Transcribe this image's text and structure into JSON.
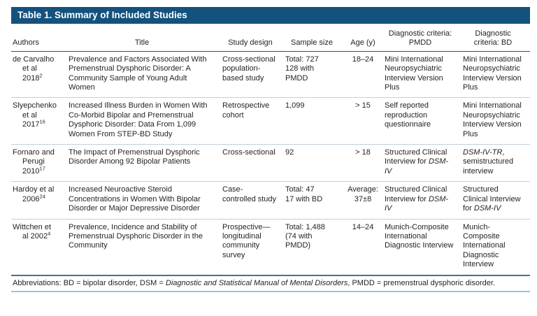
{
  "title_bar": {
    "text": "Table 1. Summary of Included Studies"
  },
  "colors": {
    "title_bar_bg": "#14527E",
    "title_bar_text": "#FFFFFF",
    "header_rule": "#4A4A4C",
    "row_rule": "#C2CFDA",
    "strong_rule": "#35779F",
    "light_rule": "#9FC2D6",
    "text": "#231F20"
  },
  "table": {
    "columns": [
      {
        "key": "authors",
        "label": "Authors"
      },
      {
        "key": "title",
        "label": "Title"
      },
      {
        "key": "design",
        "label": "Study design"
      },
      {
        "key": "sample",
        "label": "Sample size"
      },
      {
        "key": "age",
        "label": "Age (y)"
      },
      {
        "key": "pmdd",
        "label": "Diagnostic criteria: PMDD"
      },
      {
        "key": "bd",
        "label": "Diagnostic criteria: BD"
      }
    ],
    "rows": [
      {
        "authors": [
          {
            "text": "de Carvalho"
          },
          {
            "br": true
          },
          {
            "text": "et al"
          },
          {
            "br": true
          },
          {
            "text": "2018"
          },
          {
            "text": "2",
            "sup": true
          }
        ],
        "title": [
          {
            "text": "Prevalence and Factors Associated With Premenstrual Dysphoric Disorder: A Community Sample of Young Adult Women"
          }
        ],
        "design": [
          {
            "text": "Cross-sectional population-based study"
          }
        ],
        "sample": [
          {
            "text": "Total: 727"
          },
          {
            "br": true
          },
          {
            "text": "128 with"
          },
          {
            "br": true
          },
          {
            "text": "PMDD"
          }
        ],
        "age": [
          {
            "text": "18–24"
          }
        ],
        "pmdd": [
          {
            "text": "Mini International Neuropsychiatric Interview Version Plus"
          }
        ],
        "bd": [
          {
            "text": "Mini International Neuropsychiatric Interview Version Plus"
          }
        ]
      },
      {
        "authors": [
          {
            "text": "Slyepchenko"
          },
          {
            "br": true
          },
          {
            "text": "et al"
          },
          {
            "br": true
          },
          {
            "text": "2017"
          },
          {
            "text": "16",
            "sup": true
          }
        ],
        "title": [
          {
            "text": "Increased Illness Burden in Women With Co-Morbid Bipolar and Premenstrual Dysphoric Disorder: Data From 1,099 Women From STEP-BD Study"
          }
        ],
        "design": [
          {
            "text": "Retrospective cohort"
          }
        ],
        "sample": [
          {
            "text": "1,099"
          }
        ],
        "age": [
          {
            "text": "> 15"
          }
        ],
        "pmdd": [
          {
            "text": "Self reported reproduction questionnaire"
          }
        ],
        "bd": [
          {
            "text": "Mini International Neuropsychiatric Interview Version Plus"
          }
        ]
      },
      {
        "authors": [
          {
            "text": "Fornaro and"
          },
          {
            "br": true
          },
          {
            "text": "Perugi"
          },
          {
            "br": true
          },
          {
            "text": "2010"
          },
          {
            "text": "17",
            "sup": true
          }
        ],
        "title": [
          {
            "text": "The Impact of Premenstrual Dysphoric Disorder Among 92 Bipolar Patients"
          }
        ],
        "design": [
          {
            "text": "Cross-sectional"
          }
        ],
        "sample": [
          {
            "text": "92"
          }
        ],
        "age": [
          {
            "text": "> 18"
          }
        ],
        "pmdd": [
          {
            "text": "Structured Clinical Interview for "
          },
          {
            "text": "DSM-IV",
            "italic": true
          }
        ],
        "bd": [
          {
            "text": "DSM-IV-TR",
            "italic": true
          },
          {
            "text": ", semistructured interview"
          }
        ]
      },
      {
        "authors": [
          {
            "text": "Hardoy et al"
          },
          {
            "br": true
          },
          {
            "text": "2006"
          },
          {
            "text": "24",
            "sup": true
          }
        ],
        "title": [
          {
            "text": "Increased Neuroactive Steroid Concentrations in Women With Bipolar Disorder or Major Depressive Disorder"
          }
        ],
        "design": [
          {
            "text": "Case-"
          },
          {
            "br": true
          },
          {
            "text": "controlled study"
          }
        ],
        "sample": [
          {
            "text": "Total: 47"
          },
          {
            "br": true
          },
          {
            "text": "17 with BD"
          }
        ],
        "age": [
          {
            "text": "Average:"
          },
          {
            "br": true
          },
          {
            "text": "37±8"
          }
        ],
        "pmdd": [
          {
            "text": "Structured Clinical Interview for "
          },
          {
            "text": "DSM-IV",
            "italic": true
          }
        ],
        "bd": [
          {
            "text": "Structured Clinical Interview for "
          },
          {
            "text": "DSM-IV",
            "italic": true
          }
        ]
      },
      {
        "authors": [
          {
            "text": "Wittchen et"
          },
          {
            "br": true
          },
          {
            "text": "al 2002"
          },
          {
            "text": "4",
            "sup": true
          }
        ],
        "title": [
          {
            "text": "Prevalence, Incidence and Stability of Premenstrual Dysphoric Disorder in the Community"
          }
        ],
        "design": [
          {
            "text": "Prospective—"
          },
          {
            "br": true
          },
          {
            "text": "longitudinal community survey"
          }
        ],
        "sample": [
          {
            "text": "Total: 1,488"
          },
          {
            "br": true
          },
          {
            "text": "(74 with"
          },
          {
            "br": true
          },
          {
            "text": "PMDD)"
          }
        ],
        "age": [
          {
            "text": "14–24"
          }
        ],
        "pmdd": [
          {
            "text": "Munich-Composite International Diagnostic Interview"
          }
        ],
        "bd": [
          {
            "text": "Munich-Composite International Diagnostic Interview"
          }
        ]
      }
    ]
  },
  "footer": {
    "segments": [
      {
        "text": "Abbreviations: BD = bipolar disorder, DSM = "
      },
      {
        "text": "Diagnostic and Statistical Manual of Mental Disorders",
        "italic": true
      },
      {
        "text": ", PMDD = premenstrual dysphoric disorder."
      }
    ]
  }
}
